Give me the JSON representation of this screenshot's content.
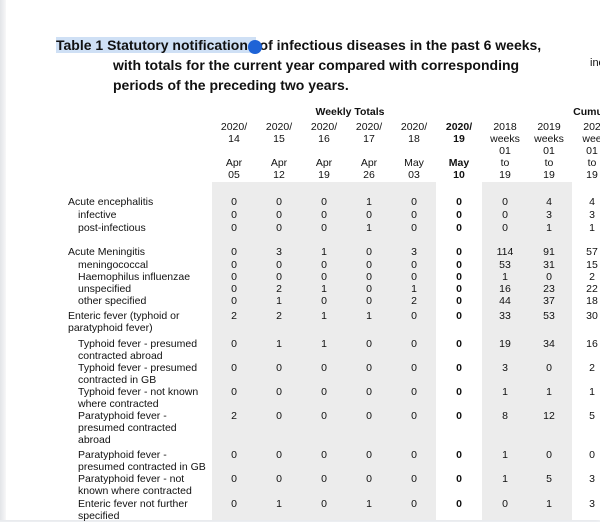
{
  "title": {
    "line1_prefix": "Table 1  Statutory notifications",
    "line1_rest": " of infectious diseases in the past 6 weeks,",
    "line2": "with totals for the current year compared with corresponding",
    "line3": "periods of the preceding two years."
  },
  "side_fragment": "inc",
  "group_headers": {
    "weekly": "Weekly Totals",
    "cumulative": "Cumu"
  },
  "columns": [
    {
      "l1": "2020/",
      "l2": "14",
      "l3": "Apr",
      "l4": "05",
      "bold": false
    },
    {
      "l1": "2020/",
      "l2": "15",
      "l3": "Apr",
      "l4": "12",
      "bold": false
    },
    {
      "l1": "2020/",
      "l2": "16",
      "l3": "Apr",
      "l4": "19",
      "bold": false
    },
    {
      "l1": "2020/",
      "l2": "17",
      "l3": "Apr",
      "l4": "26",
      "bold": false
    },
    {
      "l1": "2020/",
      "l2": "18",
      "l3": "May",
      "l4": "03",
      "bold": false
    },
    {
      "l1": "2020/",
      "l2": "19",
      "l3": "May",
      "l4": "10",
      "bold": true
    },
    {
      "l1": "2018",
      "l2": "weeks",
      "l3": "01",
      "l4": "to",
      "l5": "19",
      "bold": false
    },
    {
      "l1": "2019",
      "l2": "weeks",
      "l3": "01",
      "l4": "to",
      "l5": "19",
      "bold": false
    },
    {
      "l1": "202",
      "l2": "wee",
      "l3": "01",
      "l4": "to",
      "l5": "19",
      "bold": false
    }
  ],
  "rows": [
    {
      "lines": [
        "Acute encephalitis"
      ],
      "indent": 0,
      "values": [
        "0",
        "0",
        "0",
        "1",
        "0",
        "0",
        "0",
        "4",
        "4"
      ]
    },
    {
      "lines": [
        "infective"
      ],
      "indent": 10,
      "values": [
        "0",
        "0",
        "0",
        "0",
        "0",
        "0",
        "0",
        "3",
        "3"
      ]
    },
    {
      "lines": [
        "post-infectious"
      ],
      "indent": 10,
      "values": [
        "0",
        "0",
        "0",
        "1",
        "0",
        "0",
        "0",
        "1",
        "1"
      ]
    },
    {
      "lines": [
        "Acute Meningitis"
      ],
      "indent": 0,
      "values": [
        "0",
        "3",
        "1",
        "0",
        "3",
        "0",
        "114",
        "91",
        "57"
      ]
    },
    {
      "lines": [
        "meningococcal"
      ],
      "indent": 10,
      "values": [
        "0",
        "0",
        "0",
        "0",
        "0",
        "0",
        "53",
        "31",
        "15"
      ]
    },
    {
      "lines": [
        "Haemophilus influenzae"
      ],
      "indent": 10,
      "values": [
        "0",
        "0",
        "0",
        "0",
        "0",
        "0",
        "1",
        "0",
        "2"
      ]
    },
    {
      "lines": [
        "unspecified"
      ],
      "indent": 10,
      "values": [
        "0",
        "2",
        "1",
        "0",
        "1",
        "0",
        "16",
        "23",
        "22"
      ]
    },
    {
      "lines": [
        "other specified"
      ],
      "indent": 10,
      "values": [
        "0",
        "1",
        "0",
        "0",
        "2",
        "0",
        "44",
        "37",
        "18"
      ]
    },
    {
      "lines": [
        "Enteric fever (typhoid or",
        "paratyphoid fever)"
      ],
      "indent": 0,
      "values": [
        "2",
        "2",
        "1",
        "1",
        "0",
        "0",
        "33",
        "53",
        "30"
      ]
    },
    {
      "lines": [
        "Typhoid fever - presumed",
        "contracted abroad"
      ],
      "indent": 10,
      "values": [
        "0",
        "1",
        "1",
        "0",
        "0",
        "0",
        "19",
        "34",
        "16"
      ]
    },
    {
      "lines": [
        "Typhoid fever - presumed",
        "contracted in GB"
      ],
      "indent": 10,
      "values": [
        "0",
        "0",
        "0",
        "0",
        "0",
        "0",
        "3",
        "0",
        "2"
      ]
    },
    {
      "lines": [
        "Typhoid fever - not known",
        "where contracted"
      ],
      "indent": 10,
      "values": [
        "0",
        "0",
        "0",
        "0",
        "0",
        "0",
        "1",
        "1",
        "1"
      ]
    },
    {
      "lines": [
        "Paratyphoid fever -",
        "presumed contracted",
        "abroad"
      ],
      "indent": 10,
      "values": [
        "2",
        "0",
        "0",
        "0",
        "0",
        "0",
        "8",
        "12",
        "5"
      ]
    },
    {
      "lines": [
        "Paratyphoid fever -",
        "presumed contracted in GB"
      ],
      "indent": 10,
      "values": [
        "0",
        "0",
        "0",
        "0",
        "0",
        "0",
        "1",
        "0",
        "0"
      ]
    },
    {
      "lines": [
        "Paratyphoid fever - not",
        "known where contracted"
      ],
      "indent": 10,
      "values": [
        "0",
        "0",
        "0",
        "0",
        "0",
        "0",
        "1",
        "5",
        "3"
      ]
    },
    {
      "lines": [
        "Enteric fever not further",
        "specified"
      ],
      "indent": 10,
      "values": [
        "0",
        "1",
        "0",
        "1",
        "0",
        "0",
        "0",
        "1",
        "3"
      ]
    }
  ]
}
